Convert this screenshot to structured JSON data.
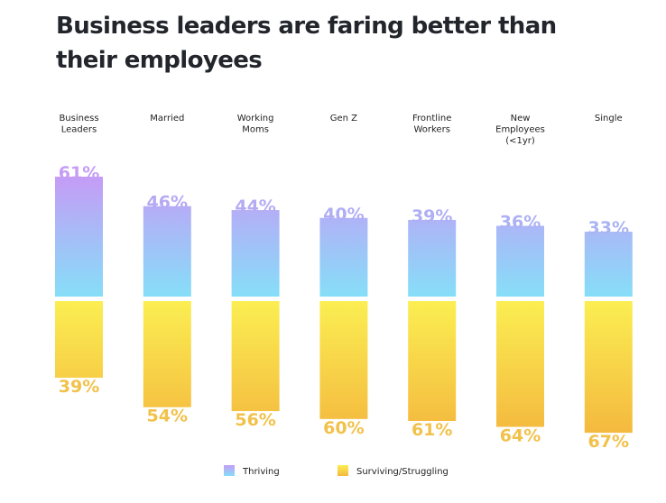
{
  "title": "Business leaders are faring better than their employees",
  "chart_data": {
    "type": "bar",
    "subtype": "diverging-stacked",
    "title": "Business leaders are faring better than their employees",
    "categories": [
      [
        "Business",
        "Leaders"
      ],
      [
        "Married"
      ],
      [
        "Working",
        "Moms"
      ],
      [
        "Gen Z"
      ],
      [
        "Frontline",
        "Workers"
      ],
      [
        "New",
        "Employees",
        "(<1yr)"
      ],
      [
        "Single"
      ]
    ],
    "series": [
      {
        "name": "Thriving",
        "direction": "up",
        "values": [
          61,
          46,
          44,
          40,
          39,
          36,
          33
        ],
        "labels": [
          "61%",
          "46%",
          "44%",
          "40%",
          "39%",
          "36%",
          "33%"
        ],
        "colors": [
          "#c59cf6",
          "#86def8"
        ]
      },
      {
        "name": "Surviving/Struggling",
        "direction": "down",
        "values": [
          39,
          54,
          56,
          60,
          61,
          64,
          67
        ],
        "labels": [
          "39%",
          "54%",
          "56%",
          "60%",
          "61%",
          "64%",
          "67%"
        ],
        "colors": [
          "#fbee52",
          "#f4b93f"
        ]
      }
    ],
    "unit": "%",
    "xlabel": "",
    "ylabel": "",
    "ylim": [
      0,
      100
    ],
    "grid": false,
    "legend": "bottom-center"
  },
  "legend": {
    "items": [
      "Thriving",
      "Surviving/Struggling"
    ]
  }
}
